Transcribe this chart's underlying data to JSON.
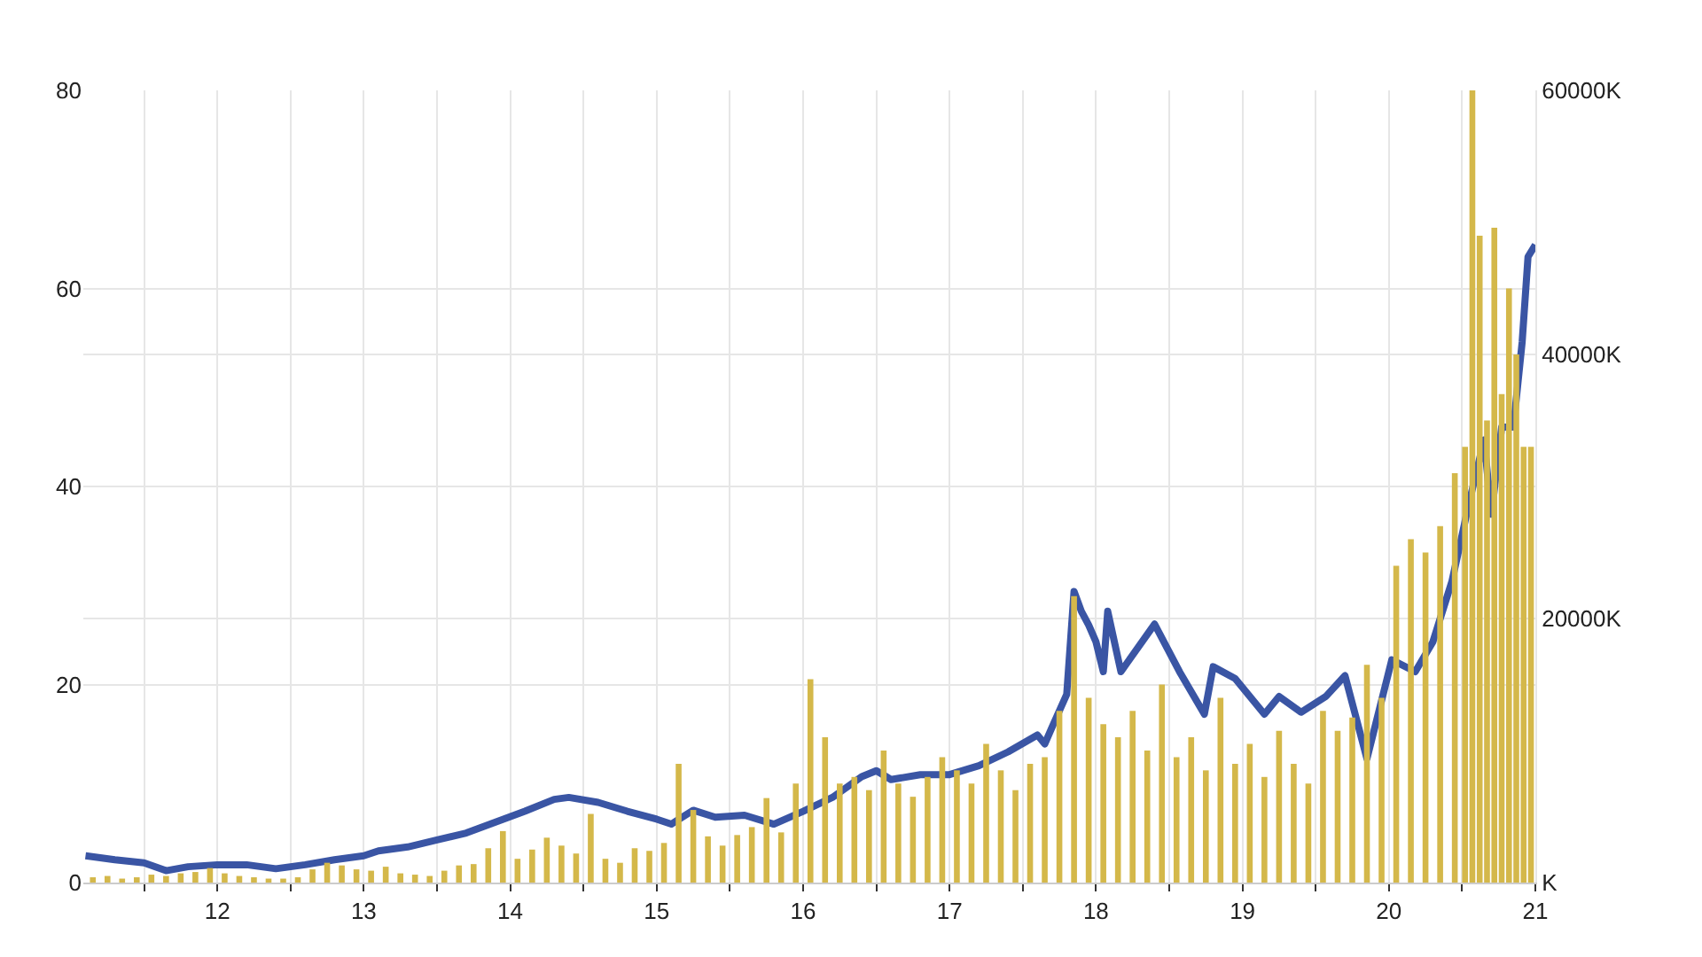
{
  "chart_data": {
    "type": "line",
    "xlim": [
      11.085,
      21
    ],
    "xticks": [
      {
        "value": 11.5,
        "label": null
      },
      12,
      {
        "value": 12.5,
        "label": null
      },
      13,
      {
        "value": 13.5,
        "label": null
      },
      14,
      {
        "value": 14.5,
        "label": null
      },
      15,
      {
        "value": 15.5,
        "label": null
      },
      16,
      {
        "value": 16.5,
        "label": null
      },
      17,
      {
        "value": 17.5,
        "label": null
      },
      18,
      {
        "value": 18.5,
        "label": null
      },
      19,
      {
        "value": 19.5,
        "label": null
      },
      20,
      {
        "value": 20.5,
        "label": null
      },
      21
    ],
    "ylim": [
      0,
      80
    ],
    "yticks": [
      0,
      20,
      40,
      60,
      80
    ],
    "y2lim": [
      0,
      60000
    ],
    "y2ticks": [
      {
        "value": 0,
        "label": "K"
      },
      {
        "value": 20000,
        "label": "20000K"
      },
      {
        "value": 40000,
        "label": "40000K"
      },
      {
        "value": 60000,
        "label": "60000K"
      }
    ],
    "grid": true,
    "series": [
      {
        "type": "bar",
        "axis": "y2",
        "color": "#d4b84a",
        "x": [
          11.15,
          11.25,
          11.35,
          11.45,
          11.55,
          11.65,
          11.75,
          11.85,
          11.95,
          12.05,
          12.15,
          12.25,
          12.35,
          12.45,
          12.55,
          12.65,
          12.75,
          12.85,
          12.95,
          13.05,
          13.15,
          13.25,
          13.35,
          13.45,
          13.55,
          13.65,
          13.75,
          13.85,
          13.95,
          14.05,
          14.15,
          14.25,
          14.35,
          14.45,
          14.55,
          14.65,
          14.75,
          14.85,
          14.95,
          15.05,
          15.15,
          15.25,
          15.35,
          15.45,
          15.55,
          15.65,
          15.75,
          15.85,
          15.95,
          16.05,
          16.15,
          16.25,
          16.35,
          16.45,
          16.55,
          16.65,
          16.75,
          16.85,
          16.95,
          17.05,
          17.15,
          17.25,
          17.35,
          17.45,
          17.55,
          17.65,
          17.75,
          17.85,
          17.95,
          18.05,
          18.15,
          18.25,
          18.35,
          18.45,
          18.55,
          18.65,
          18.75,
          18.85,
          18.95,
          19.05,
          19.15,
          19.25,
          19.35,
          19.45,
          19.55,
          19.65,
          19.75,
          19.85,
          19.95,
          20.05,
          20.15,
          20.25,
          20.35,
          20.45,
          20.52,
          20.57,
          20.62,
          20.67,
          20.72,
          20.77,
          20.82,
          20.87,
          20.92,
          20.97
        ],
        "values": [
          400,
          500,
          300,
          400,
          600,
          500,
          700,
          800,
          1100,
          700,
          500,
          400,
          300,
          300,
          400,
          1000,
          1500,
          1300,
          1000,
          900,
          1200,
          700,
          600,
          500,
          900,
          1300,
          1400,
          2600,
          3900,
          1800,
          2500,
          3400,
          2800,
          2200,
          5200,
          1800,
          1500,
          2600,
          2400,
          3000,
          9000,
          5500,
          3500,
          2800,
          3600,
          4200,
          6400,
          3800,
          7500,
          15400,
          11000,
          7500,
          8000,
          7000,
          10000,
          7500,
          6500,
          8000,
          9500,
          8500,
          7500,
          10500,
          8500,
          7000,
          9000,
          9500,
          13000,
          21700,
          14000,
          12000,
          11000,
          13000,
          10000,
          15000,
          9500,
          11000,
          8500,
          14000,
          9000,
          10500,
          8000,
          11500,
          9000,
          7500,
          13000,
          11500,
          12500,
          16500,
          14000,
          24000,
          26000,
          25000,
          27000,
          31000,
          33000,
          60000,
          49000,
          35000,
          49600,
          37000,
          45000,
          40000,
          33000,
          33000
        ]
      },
      {
        "axis": "y",
        "color": "#3a55a4",
        "x": [
          11.1,
          11.3,
          11.5,
          11.65,
          11.8,
          12.0,
          12.2,
          12.4,
          12.6,
          12.8,
          13.0,
          13.1,
          13.3,
          13.5,
          13.7,
          13.9,
          14.1,
          14.3,
          14.4,
          14.6,
          14.8,
          15.0,
          15.1,
          15.25,
          15.4,
          15.6,
          15.8,
          16.0,
          16.2,
          16.4,
          16.5,
          16.6,
          16.8,
          17.0,
          17.2,
          17.4,
          17.6,
          17.65,
          17.7,
          17.8,
          17.85,
          17.9,
          17.95,
          18.0,
          18.05,
          18.08,
          18.17,
          18.4,
          18.57,
          18.74,
          18.8,
          18.95,
          19.15,
          19.25,
          19.4,
          19.57,
          19.7,
          19.85,
          20.02,
          20.18,
          20.3,
          20.43,
          20.55,
          20.65,
          20.7,
          20.77,
          20.85,
          20.91,
          20.95,
          21.0
        ],
        "values": [
          2.7,
          2.3,
          2.0,
          1.2,
          1.6,
          1.8,
          1.8,
          1.4,
          1.8,
          2.3,
          2.7,
          3.2,
          3.6,
          4.3,
          5.0,
          6.1,
          7.2,
          8.4,
          8.6,
          8.1,
          7.2,
          6.4,
          5.9,
          7.3,
          6.6,
          6.8,
          5.9,
          7.2,
          8.6,
          10.7,
          11.3,
          10.4,
          10.9,
          10.9,
          11.8,
          13.2,
          14.9,
          14.0,
          15.7,
          19.0,
          29.4,
          27.4,
          26.0,
          24.3,
          21.3,
          27.4,
          21.3,
          26.1,
          21.3,
          17.0,
          21.8,
          20.6,
          17.0,
          18.8,
          17.2,
          18.8,
          20.9,
          12.5,
          22.5,
          21.3,
          24.3,
          30.4,
          38.5,
          44.7,
          37.2,
          46.0,
          46.0,
          54.6,
          63.2,
          64.4
        ]
      }
    ]
  }
}
